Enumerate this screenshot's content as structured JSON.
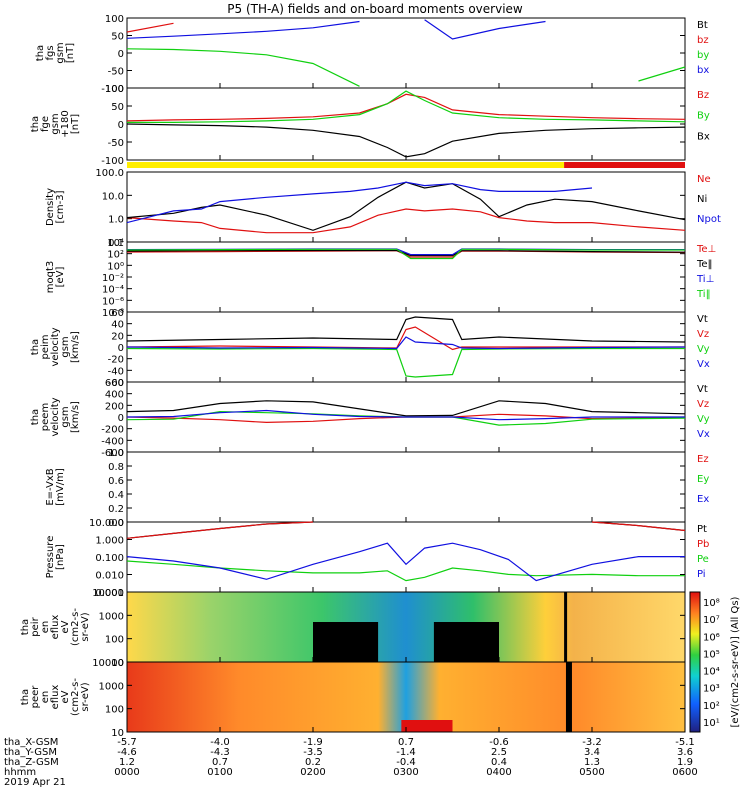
{
  "title": "P5 (TH-A) fields and on-board moments overview",
  "footer": {
    "row_labels": [
      "tha_X-GSM",
      "tha_Y-GSM",
      "tha_Z-GSM",
      "hhmm",
      "2019 Apr 21"
    ],
    "columns": [
      [
        "-5.7",
        "-4.6",
        "1.2",
        "0000"
      ],
      [
        "-4.0",
        "-4.3",
        "0.7",
        "0100"
      ],
      [
        "-1.9",
        "-3.5",
        "0.2",
        "0200"
      ],
      [
        "0.7",
        "-1.4",
        "-0.4",
        "0300"
      ],
      [
        "-0.6",
        "2.5",
        "0.4",
        "0400"
      ],
      [
        "-3.2",
        "3.4",
        "1.3",
        "0500"
      ],
      [
        "-5.1",
        "3.6",
        "1.9",
        "0600"
      ]
    ]
  },
  "colorbar": {
    "label": "[eV/(cm2-s-sr-eV)] (All Qs)",
    "ticks": [
      "10⁸",
      "10⁷",
      "10⁶",
      "10⁵",
      "10⁴",
      "10³",
      "10²",
      "10¹"
    ]
  },
  "colors": {
    "black": "#000000",
    "red": "#e01010",
    "green": "#10d010",
    "blue": "#1010e0",
    "yellow": "#ffee00"
  },
  "chart_data": [
    {
      "type": "line",
      "panel": "fgs",
      "ylabel": [
        "tha",
        "fgs",
        "gsm",
        "[nT]"
      ],
      "yticks": [
        "100",
        "50",
        "0",
        "-50",
        "-100"
      ],
      "ylim": [
        -100,
        100
      ],
      "x_hours": [
        0,
        0.5,
        1,
        1.5,
        2,
        2.5,
        2.8,
        3,
        3.2,
        3.5,
        4,
        4.5,
        5,
        5.5,
        6
      ],
      "series": [
        {
          "name": "Bt",
          "color": "black",
          "values": [
            null,
            null,
            null,
            null,
            null,
            null,
            null,
            null,
            null,
            null,
            null,
            null,
            null,
            null,
            null
          ]
        },
        {
          "name": "bz",
          "color": "red",
          "values": [
            60,
            85,
            null,
            null,
            null,
            null,
            null,
            null,
            null,
            null,
            null,
            null,
            null,
            null,
            null
          ]
        },
        {
          "name": "by",
          "color": "green",
          "values": [
            12,
            10,
            5,
            -5,
            -30,
            -95,
            null,
            null,
            null,
            null,
            null,
            null,
            null,
            -80,
            -40
          ]
        },
        {
          "name": "bx",
          "color": "blue",
          "values": [
            42,
            48,
            55,
            62,
            72,
            90,
            null,
            null,
            95,
            40,
            70,
            90,
            null,
            null,
            null
          ]
        }
      ]
    },
    {
      "type": "line",
      "panel": "fge",
      "ylabel": [
        "tha",
        "fge",
        "gsm",
        "+180",
        "[nT]"
      ],
      "yticks": [
        "100",
        "50",
        "0",
        "-50",
        "-100"
      ],
      "ylim": [
        -120,
        110
      ],
      "x_hours": [
        0,
        0.5,
        1,
        1.5,
        2,
        2.5,
        2.8,
        3,
        3.2,
        3.5,
        4,
        4.5,
        5,
        5.5,
        6
      ],
      "series": [
        {
          "name": "Bz",
          "color": "red",
          "values": [
            5,
            8,
            10,
            13,
            18,
            30,
            60,
            90,
            80,
            40,
            25,
            20,
            15,
            12,
            10
          ]
        },
        {
          "name": "By",
          "color": "green",
          "values": [
            0,
            0,
            2,
            5,
            10,
            25,
            60,
            100,
            70,
            30,
            15,
            10,
            8,
            5,
            2
          ]
        },
        {
          "name": "Bx",
          "color": "black",
          "values": [
            -5,
            -8,
            -10,
            -15,
            -25,
            -45,
            -80,
            -110,
            -100,
            -60,
            -35,
            -25,
            -20,
            -17,
            -15
          ]
        }
      ],
      "mode_bar": {
        "segments": [
          {
            "from": 0,
            "to": 4.7,
            "color": "yellow"
          },
          {
            "from": 4.7,
            "to": 6,
            "color": "red"
          }
        ]
      }
    },
    {
      "type": "line",
      "panel": "density",
      "log": true,
      "ylabel": [
        "Density",
        "[cm-3]"
      ],
      "yticks": [
        "100.0",
        "10.0",
        "1.0",
        "0.1"
      ],
      "ylim": [
        0.05,
        200
      ],
      "x_hours": [
        0,
        0.5,
        0.8,
        1,
        1.5,
        2,
        2.4,
        2.7,
        3,
        3.2,
        3.5,
        3.8,
        4,
        4.3,
        4.6,
        5,
        5.5,
        6
      ],
      "series": [
        {
          "name": "Ne",
          "color": "red",
          "values": [
            0.9,
            0.6,
            0.5,
            0.25,
            0.15,
            0.15,
            0.3,
            1.2,
            2.5,
            2.0,
            2.5,
            1.8,
            0.9,
            0.6,
            0.5,
            0.5,
            0.3,
            0.2
          ]
        },
        {
          "name": "Ni",
          "color": "black",
          "values": [
            0.9,
            1.5,
            3.0,
            4.0,
            1.2,
            0.2,
            1.0,
            10.0,
            60.0,
            30.0,
            50.0,
            8.0,
            1.0,
            4.0,
            8.0,
            6.0,
            2.0,
            0.7
          ]
        },
        {
          "name": "Npot",
          "color": "blue",
          "values": [
            0.5,
            2.0,
            2.5,
            6.0,
            10.0,
            15.0,
            20.0,
            30.0,
            60.0,
            40.0,
            50.0,
            25.0,
            20.0,
            20.0,
            20.0,
            30.0,
            null,
            null
          ]
        }
      ]
    },
    {
      "type": "line",
      "panel": "temperature",
      "log": true,
      "ylabel": [
        "moqt3",
        "[eV]"
      ],
      "yticks": [
        "10⁴",
        "10²",
        "10⁰",
        "10⁻²",
        "10⁻⁴",
        "10⁻⁶",
        "10⁻⁸"
      ],
      "ylim": [
        1e-09,
        100000.0
      ],
      "x_hours": [
        0,
        1,
        2,
        2.9,
        3.05,
        3.2,
        3.5,
        3.6,
        4,
        5,
        6
      ],
      "series": [
        {
          "name": "Te⊥",
          "color": "red",
          "values": [
            1000,
            1200,
            1500,
            1800,
            100,
            100,
            100,
            1500,
            1500,
            1000,
            800
          ]
        },
        {
          "name": "Te‖",
          "color": "black",
          "values": [
            1500,
            1800,
            2000,
            2000,
            200,
            200,
            200,
            1800,
            1800,
            1200,
            900
          ]
        },
        {
          "name": "Ti⊥",
          "color": "blue",
          "values": [
            3000,
            3500,
            4000,
            4000,
            300,
            300,
            300,
            4000,
            4000,
            3000,
            3000
          ]
        },
        {
          "name": "Ti‖",
          "color": "green",
          "values": [
            2500,
            3000,
            3500,
            3500,
            50,
            50,
            50,
            3500,
            3500,
            2500,
            2500
          ]
        }
      ]
    },
    {
      "type": "line",
      "panel": "peim",
      "ylabel": [
        "tha",
        "peim",
        "velocity",
        "gsm",
        "[km/s]"
      ],
      "yticks": [
        "60",
        "40",
        "20",
        "0",
        "-20",
        "-40",
        "-60"
      ],
      "ylim": [
        -70,
        70
      ],
      "x_hours": [
        0,
        1,
        2,
        2.9,
        3.0,
        3.1,
        3.5,
        3.6,
        4,
        5,
        6
      ],
      "series": [
        {
          "name": "Vt",
          "color": "black",
          "values": [
            12,
            15,
            18,
            15,
            55,
            60,
            55,
            15,
            20,
            12,
            10
          ]
        },
        {
          "name": "Vz",
          "color": "red",
          "values": [
            0,
            2,
            0,
            -2,
            35,
            40,
            -5,
            0,
            0,
            0,
            0
          ]
        },
        {
          "name": "Vy",
          "color": "green",
          "values": [
            -3,
            -4,
            -3,
            -5,
            -58,
            -60,
            -55,
            -5,
            -4,
            -3,
            -3
          ]
        },
        {
          "name": "Vx",
          "color": "blue",
          "values": [
            0,
            -2,
            -1,
            -3,
            20,
            10,
            5,
            -2,
            -3,
            -1,
            0
          ]
        }
      ]
    },
    {
      "type": "line",
      "panel": "peem",
      "ylabel": [
        "tha",
        "peem",
        "velocity",
        "gsm",
        "[km/s]"
      ],
      "yticks": [
        "600",
        "400",
        "200",
        "0",
        "-200",
        "-400",
        "-600"
      ],
      "ylim": [
        -650,
        650
      ],
      "x_hours": [
        0,
        0.5,
        1,
        1.5,
        2,
        2.5,
        3,
        3.5,
        4,
        4.5,
        5,
        5.5,
        6
      ],
      "series": [
        {
          "name": "Vt",
          "color": "black",
          "values": [
            100,
            120,
            250,
            300,
            280,
            150,
            20,
            30,
            300,
            250,
            100,
            80,
            60
          ]
        },
        {
          "name": "Vz",
          "color": "red",
          "values": [
            0,
            -20,
            -50,
            -100,
            -80,
            -30,
            0,
            0,
            50,
            20,
            -30,
            -20,
            0
          ]
        },
        {
          "name": "Vy",
          "color": "green",
          "values": [
            -50,
            -40,
            100,
            80,
            60,
            20,
            0,
            0,
            -150,
            -120,
            -40,
            -30,
            -20
          ]
        },
        {
          "name": "Vx",
          "color": "blue",
          "values": [
            0,
            10,
            80,
            120,
            50,
            10,
            0,
            0,
            -50,
            -30,
            0,
            0,
            0
          ]
        }
      ]
    },
    {
      "type": "line",
      "panel": "efield",
      "ylabel": [
        "E=-VxB",
        "[mV/m]"
      ],
      "yticks": [
        "1.0",
        "0.8",
        "0.6",
        "0.4",
        "0.2",
        "0.0"
      ],
      "ylim": [
        0,
        1
      ],
      "series": [
        {
          "name": "Ez",
          "color": "red",
          "values": []
        },
        {
          "name": "Ey",
          "color": "green",
          "values": []
        },
        {
          "name": "Ex",
          "color": "blue",
          "values": []
        }
      ]
    },
    {
      "type": "line",
      "panel": "pressure",
      "log": true,
      "ylabel": [
        "Pressure",
        "[nPa]"
      ],
      "yticks": [
        "10.000",
        "1.000",
        "0.100",
        "0.010",
        "0.001"
      ],
      "ylim": [
        0.001,
        20
      ],
      "x_hours": [
        0,
        0.5,
        1,
        1.5,
        2,
        2.5,
        2.8,
        3.0,
        3.2,
        3.5,
        3.8,
        4.1,
        4.4,
        5,
        5.5,
        6
      ],
      "series": [
        {
          "name": "Pt",
          "color": "black",
          "values": [
            2.0,
            4.0,
            8.0,
            15.0,
            25.0,
            null,
            null,
            null,
            null,
            null,
            null,
            null,
            null,
            25.0,
            12.0,
            6.0
          ]
        },
        {
          "name": "Pb",
          "color": "red",
          "values": [
            2.0,
            4.0,
            8.0,
            15.0,
            25.0,
            null,
            null,
            null,
            null,
            null,
            null,
            null,
            null,
            25.0,
            12.0,
            6.0
          ]
        },
        {
          "name": "Pe",
          "color": "green",
          "values": [
            0.08,
            0.05,
            0.03,
            0.02,
            0.015,
            0.015,
            0.02,
            0.005,
            0.008,
            0.03,
            0.02,
            0.012,
            0.01,
            0.012,
            0.01,
            0.01
          ]
        },
        {
          "name": "Pi",
          "color": "blue",
          "values": [
            0.15,
            0.08,
            0.03,
            0.006,
            0.05,
            0.3,
            1.0,
            0.05,
            0.5,
            1.0,
            0.4,
            0.1,
            0.005,
            0.05,
            0.15,
            0.15
          ]
        }
      ]
    },
    {
      "type": "heatmap",
      "panel": "peir",
      "ylabel": [
        "tha",
        "peir",
        "en",
        "eflux",
        "eV",
        "(cm2-s-",
        "sr-eV)"
      ],
      "yticks": [
        "10000",
        "1000",
        "100",
        "10"
      ],
      "ylim": [
        5,
        30000
      ]
    },
    {
      "type": "heatmap",
      "panel": "peer",
      "ylabel": [
        "tha",
        "peer",
        "en",
        "eflux",
        "eV",
        "(cm2-s-",
        "sr-eV)"
      ],
      "yticks": [
        "10000",
        "1000",
        "100",
        "10"
      ],
      "ylim": [
        5,
        30000
      ]
    }
  ]
}
